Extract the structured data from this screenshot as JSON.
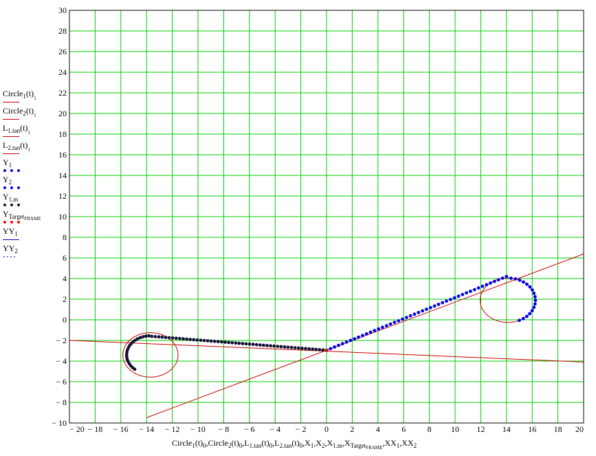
{
  "chart_data": {
    "type": "scatter",
    "xlim": [
      -20,
      20
    ],
    "ylim": [
      -10,
      30
    ],
    "x_ticks": [
      -20,
      -18,
      -16,
      -14,
      -12,
      -10,
      -8,
      -6,
      -4,
      -2,
      0,
      2,
      4,
      6,
      8,
      10,
      12,
      14,
      16,
      18,
      20
    ],
    "y_ticks": [
      -10,
      -8,
      -6,
      -4,
      -2,
      0,
      2,
      4,
      6,
      8,
      10,
      12,
      14,
      16,
      18,
      20,
      22,
      24,
      26,
      28,
      30
    ],
    "x_tick_labels": [
      "− 20",
      "− 18",
      "− 16",
      "− 14",
      "− 12",
      "− 10",
      "− 8",
      "− 6",
      "− 4",
      "− 2",
      "0",
      "2",
      "4",
      "6",
      "8",
      "10",
      "12",
      "14",
      "16",
      "18",
      "20"
    ],
    "y_tick_labels": [
      "− 10",
      "− 8",
      "− 6",
      "− 4",
      "− 2",
      "0",
      "2",
      "4",
      "6",
      "8",
      "10",
      "12",
      "14",
      "16",
      "18",
      "20",
      "22",
      "24",
      "26",
      "28",
      "30"
    ],
    "grid": true,
    "colors": {
      "grid": "#00cc00",
      "red": "#cc0000",
      "blue": "#0000ee",
      "dark": "#111133",
      "target": "#ff0000",
      "yy1": "#0000cc",
      "yy2": "#000080"
    },
    "xlabel_parts": {
      "p1": "Circle",
      "s1": "1",
      "p2": "(t)",
      "s2": "0",
      "p3": ",Circle",
      "s3": "2",
      "p4": "(t)",
      "s4": "0",
      "p5": ",L",
      "s5": "1.tan",
      "p6": "(t)",
      "s6": "0",
      "p7": ",L",
      "s7": "2.tan",
      "p8": "(t)",
      "s8": "0",
      "p9": ",X",
      "s9": "1",
      "p10": ",X",
      "s10": "2",
      "p11": ",X",
      "s11": "1.m",
      "p12": ",X",
      "s12": "Target",
      "s12b": "FRAME",
      "p13": ",XX",
      "s13": "1",
      "p14": ",XX",
      "s14": "2"
    },
    "legend": [
      {
        "name": "Circle",
        "sub": "1",
        "suffix": "(t)",
        "sub2": "1",
        "style": "line",
        "color": "#cc0000"
      },
      {
        "name": "Circle",
        "sub": "2",
        "suffix": "(t)",
        "sub2": "1",
        "style": "line",
        "color": "#cc0000"
      },
      {
        "name": "L",
        "sub": "1.tan",
        "suffix": "(t)",
        "sub2": "1",
        "style": "line",
        "color": "#cc0000"
      },
      {
        "name": "L",
        "sub": "2.tan",
        "suffix": "(t)",
        "sub2": "1",
        "style": "line",
        "color": "#cc0000"
      },
      {
        "name": "Y",
        "sub": "1",
        "suffix": "",
        "sub2": "",
        "style": "dots",
        "color": "#0000ee"
      },
      {
        "name": "Y",
        "sub": "2",
        "suffix": "",
        "sub2": "",
        "style": "dots",
        "color": "#0000ee"
      },
      {
        "name": "Y",
        "sub": "1.m",
        "suffix": "",
        "sub2": "",
        "style": "dots",
        "color": "#111133"
      },
      {
        "name": "Y",
        "sub": "Target",
        "suffix": "",
        "sub2": "FRAME",
        "style": "dots",
        "color": "#ff0000"
      },
      {
        "name": "YY",
        "sub": "1",
        "suffix": "",
        "sub2": "",
        "style": "line",
        "color": "#0000cc"
      },
      {
        "name": "YY",
        "sub": "2",
        "suffix": "",
        "sub2": "",
        "style": "dotted",
        "color": "#000080"
      }
    ],
    "circle1": {
      "center": [
        -13.7,
        -3.4
      ],
      "radius": 2.15
    },
    "circle2": {
      "center": [
        14.1,
        1.9
      ],
      "radius": 2.15
    },
    "line1_tan": {
      "slope": 0.4667,
      "intercept": -2.95,
      "x_range": [
        -14,
        20
      ]
    },
    "line2_tan": {
      "slope": -0.0525,
      "intercept": -3.04,
      "x_range": [
        -20,
        20
      ]
    },
    "series_Y1_path": {
      "from": [
        0,
        -2.95
      ],
      "to": [
        14.0,
        4.2
      ],
      "arc_center": [
        14.1,
        1.9
      ],
      "arc_radius": 2.15,
      "arc_end": [
        15.0,
        -0.05
      ],
      "points": 62
    },
    "series_Y1m_path": {
      "from": [
        0,
        -2.95
      ],
      "to": [
        -13.6,
        -1.6
      ],
      "arc_center": [
        -13.7,
        -3.4
      ],
      "arc_radius": 1.85,
      "arc_end": [
        -15.1,
        -5.0
      ],
      "points": 70
    },
    "target_point": [
      0,
      -2.95
    ]
  }
}
